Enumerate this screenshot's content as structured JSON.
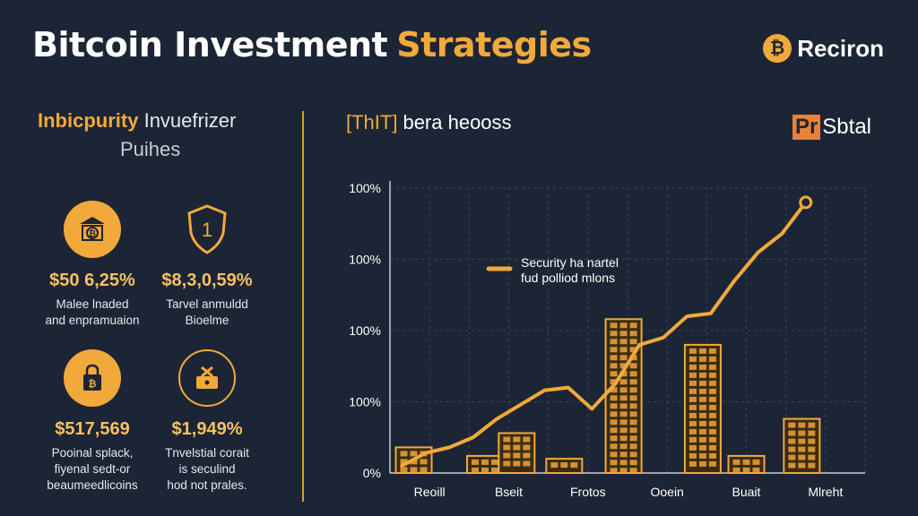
{
  "header": {
    "title_part1": "Bitcoin Investment",
    "title_part2": "Strategies",
    "brand_icon": "bitcoin-coin-icon",
    "brand_name": "Reciron"
  },
  "left_panel": {
    "heading_accent": "Inbicpurity",
    "heading_rest": "Invuefrizer",
    "subheading": "Puihes",
    "stats": [
      {
        "icon": "bitcoin-bank-icon",
        "value": "$50 6,25%",
        "desc_line1": "Malee lnaded",
        "desc_line2": "and enpramuaion"
      },
      {
        "icon": "shield-icon",
        "icon_text": "1",
        "value": "$8,3,0,59%",
        "desc_line1": "Tarvel anmuldd",
        "desc_line2": "Bioelme"
      },
      {
        "icon": "bitcoin-lock-icon",
        "value": "$517,569",
        "desc_line1": "Pooinal splack,",
        "desc_line2": "fiyenal sedt-or",
        "desc_line3": "beaumeedlicoins"
      },
      {
        "icon": "bitcoin-wallet-icon",
        "value": "$1,949%",
        "desc_line1": "Tnvelstial corait",
        "desc_line2": "is seculind",
        "desc_line3": "hod not prales."
      }
    ]
  },
  "chart_panel": {
    "title_accent": "[ThIT]",
    "title_rest": "bera heooss",
    "badge_pr": "Pr",
    "badge_text": "Sbtal"
  },
  "colors": {
    "background": "#1c2535",
    "accent": "#f2a93b",
    "divider": "#d99a36"
  },
  "chart_data": {
    "type": "line",
    "title": "",
    "xlabel": "",
    "ylabel": "",
    "categories": [
      "Reoill",
      "Bseit",
      "Frotos",
      "Ooein",
      "Buait",
      "Mlreht"
    ],
    "y_tick_labels": [
      "0%",
      "100%",
      "100%",
      "100%",
      "100%"
    ],
    "grid": true,
    "legend": {
      "position": "top-center",
      "line1": "Security ha nartel",
      "line2": "fud polliod mlons"
    },
    "line_series": {
      "x": [
        0.15,
        0.45,
        0.75,
        1.05,
        1.35,
        1.65,
        1.95,
        2.25,
        2.55,
        2.85,
        3.15,
        3.45,
        3.75,
        4.05,
        4.35,
        4.65,
        4.95,
        5.25
      ],
      "values": [
        5,
        14,
        18,
        25,
        38,
        48,
        58,
        60,
        45,
        63,
        90,
        95,
        110,
        112,
        135,
        155,
        168,
        190
      ]
    },
    "bars": [
      {
        "x": 0.3,
        "value": 18
      },
      {
        "x": 1.2,
        "value": 12
      },
      {
        "x": 1.6,
        "value": 28
      },
      {
        "x": 2.2,
        "value": 10
      },
      {
        "x": 2.95,
        "value": 108
      },
      {
        "x": 3.95,
        "value": 90
      },
      {
        "x": 4.5,
        "value": 12
      },
      {
        "x": 5.2,
        "value": 38
      }
    ],
    "ylim": [
      0,
      200
    ]
  }
}
